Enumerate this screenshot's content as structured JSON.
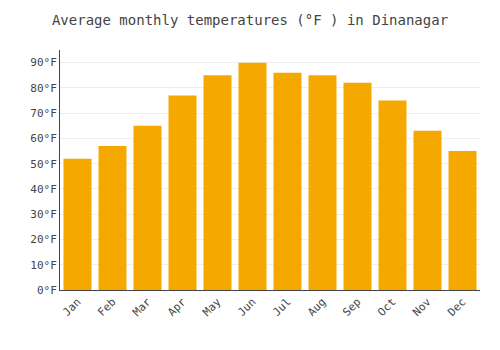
{
  "chart_data": {
    "type": "bar",
    "title": "Average monthly temperatures (°F ) in Dinanagar",
    "categories": [
      "Jan",
      "Feb",
      "Mar",
      "Apr",
      "May",
      "Jun",
      "Jul",
      "Aug",
      "Sep",
      "Oct",
      "Nov",
      "Dec"
    ],
    "values": [
      52,
      57,
      65,
      77,
      85,
      90,
      86,
      85,
      82,
      75,
      63,
      55
    ],
    "color": "#F5A800",
    "ylim": [
      0,
      95
    ],
    "yticks": [
      {
        "value": 0,
        "label": "0°F"
      },
      {
        "value": 10,
        "label": "10°F"
      },
      {
        "value": 20,
        "label": "20°F"
      },
      {
        "value": 30,
        "label": "30°F"
      },
      {
        "value": 40,
        "label": "40°F"
      },
      {
        "value": 50,
        "label": "50°F"
      },
      {
        "value": 60,
        "label": "60°F"
      },
      {
        "value": 70,
        "label": "70°F"
      },
      {
        "value": 80,
        "label": "80°F"
      },
      {
        "value": 90,
        "label": "90°F"
      }
    ],
    "grid": true
  }
}
